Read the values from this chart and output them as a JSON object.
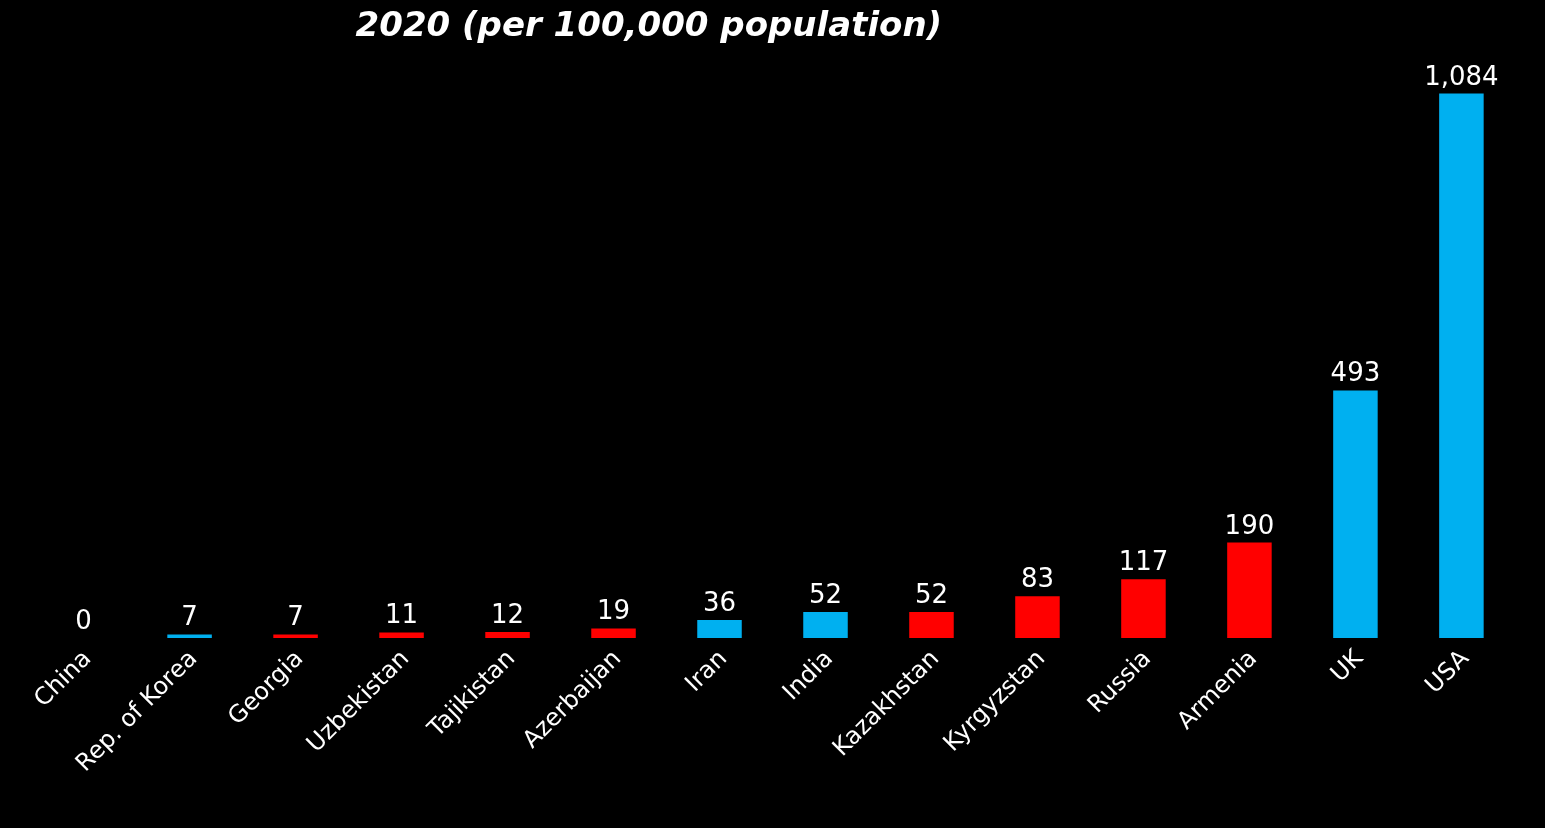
{
  "chart_data": {
    "type": "bar",
    "title": "2020 (per 100,000 population)",
    "categories": [
      "China",
      "Rep. of Korea",
      "Georgia",
      "Uzbekistan",
      "Tajikistan",
      "Azerbaijan",
      "Iran",
      "India",
      "Kazakhstan",
      "Kyrgyzstan",
      "Russia",
      "Armenia",
      "UK",
      "USA"
    ],
    "values": [
      0,
      7,
      7,
      11,
      12,
      19,
      36,
      52,
      52,
      83,
      117,
      190,
      493,
      1084
    ],
    "value_labels": [
      "0",
      "7",
      "7",
      "11",
      "12",
      "19",
      "36",
      "52",
      "52",
      "83",
      "117",
      "190",
      "493",
      "1,084"
    ],
    "colors": [
      "#00b0f0",
      "#00b0f0",
      "#ff0000",
      "#ff0000",
      "#ff0000",
      "#ff0000",
      "#00b0f0",
      "#00b0f0",
      "#ff0000",
      "#ff0000",
      "#ff0000",
      "#ff0000",
      "#00b0f0",
      "#00b0f0"
    ],
    "grid": false,
    "legend": false
  }
}
